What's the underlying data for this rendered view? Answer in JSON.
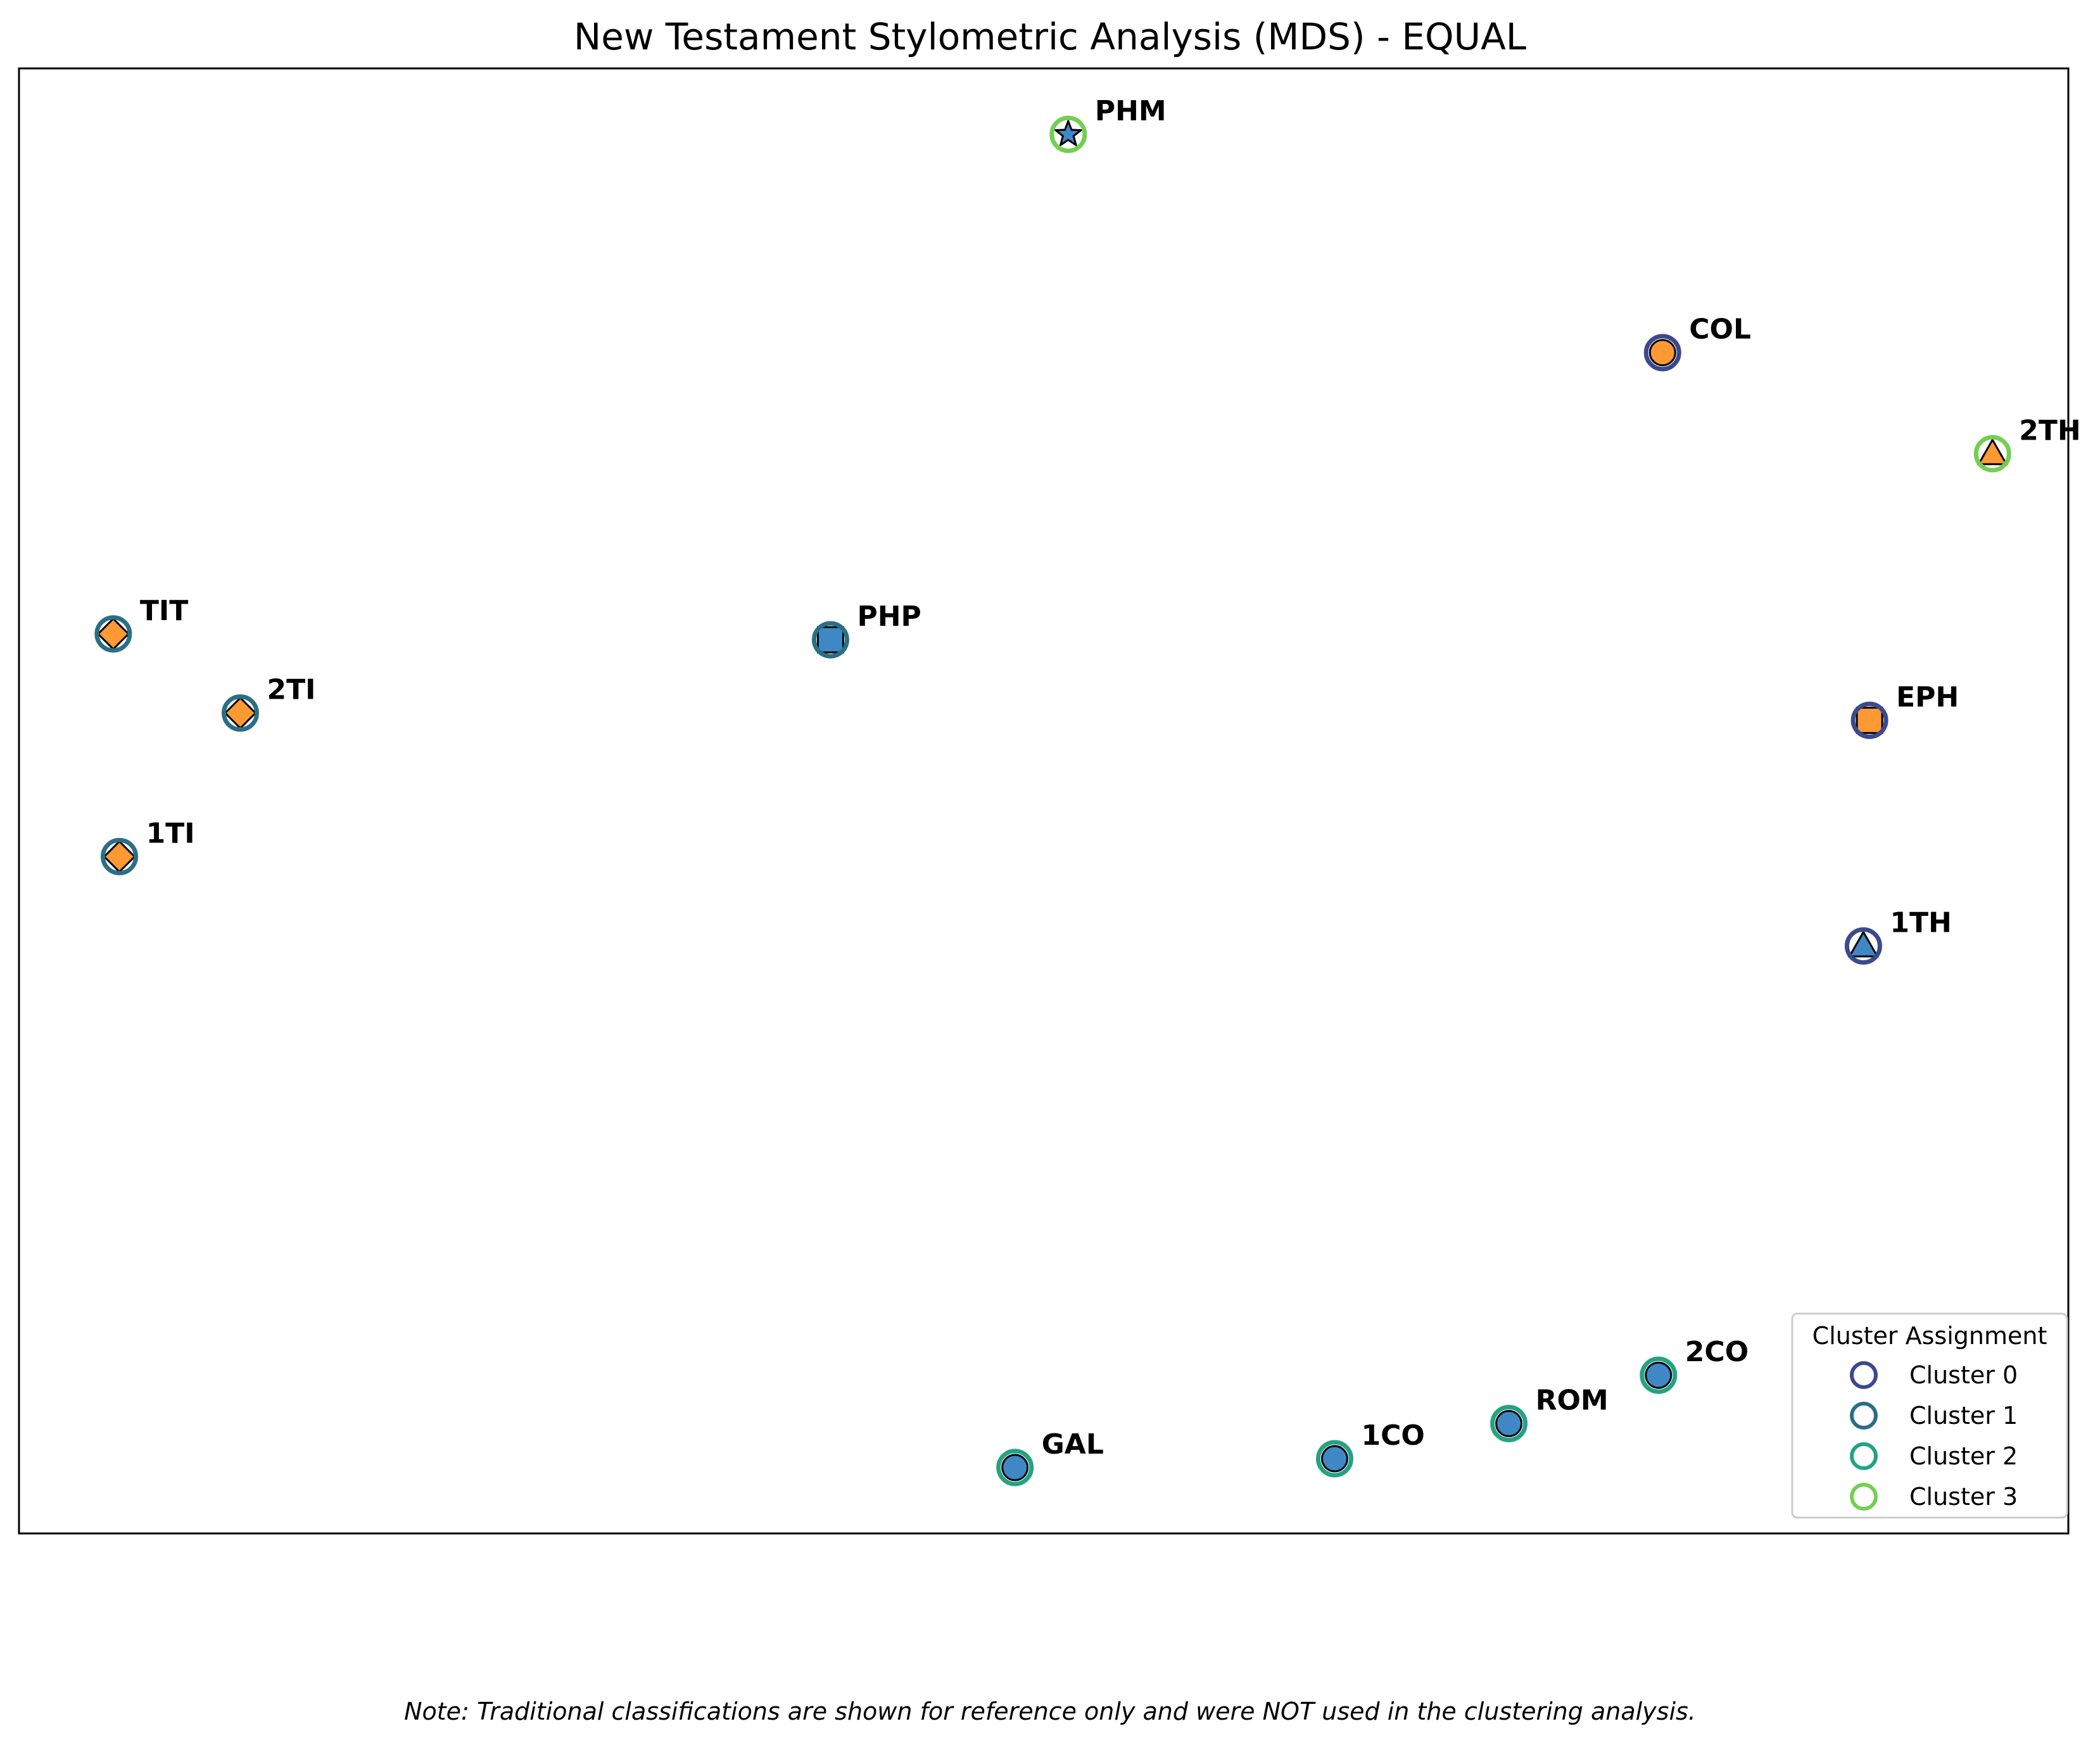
{
  "chart_data": {
    "type": "scatter",
    "title": "New Testament Stylometric Analysis (MDS) - EQUAL",
    "xlabel": "",
    "ylabel": "",
    "xlim": [
      0,
      100
    ],
    "ylim": [
      0,
      100
    ],
    "grid": false,
    "axis_ticks": false,
    "legend": {
      "title": "Cluster Assignment",
      "placement": "lower-right",
      "entries": [
        "Cluster 0",
        "Cluster 1",
        "Cluster 2",
        "Cluster 3"
      ]
    },
    "cluster_colors": [
      "#3b4a8c",
      "#2a6f86",
      "#23a384",
      "#74cf50"
    ],
    "fill_colors": {
      "orange": "#ff9933",
      "blue": "#3f88c5"
    },
    "points": [
      {
        "label": "PHM",
        "x": 51.2,
        "y": 95.5,
        "cluster": 3,
        "marker": "star",
        "fill": "blue"
      },
      {
        "label": "COL",
        "x": 80.2,
        "y": 80.6,
        "cluster": 0,
        "marker": "circle",
        "fill": "orange"
      },
      {
        "label": "2TH",
        "x": 96.3,
        "y": 73.7,
        "cluster": 3,
        "marker": "triangle",
        "fill": "orange"
      },
      {
        "label": "TIT",
        "x": 4.6,
        "y": 61.4,
        "cluster": 1,
        "marker": "diamond",
        "fill": "orange"
      },
      {
        "label": "PHP",
        "x": 39.6,
        "y": 61.0,
        "cluster": 1,
        "marker": "square",
        "fill": "blue"
      },
      {
        "label": "2TI",
        "x": 10.8,
        "y": 56.0,
        "cluster": 1,
        "marker": "diamond",
        "fill": "orange"
      },
      {
        "label": "EPH",
        "x": 90.3,
        "y": 55.5,
        "cluster": 0,
        "marker": "square",
        "fill": "orange"
      },
      {
        "label": "1TI",
        "x": 4.9,
        "y": 46.2,
        "cluster": 1,
        "marker": "diamond",
        "fill": "orange"
      },
      {
        "label": "1TH",
        "x": 90.0,
        "y": 40.1,
        "cluster": 0,
        "marker": "triangle",
        "fill": "blue"
      },
      {
        "label": "2CO",
        "x": 80.0,
        "y": 10.8,
        "cluster": 2,
        "marker": "circle",
        "fill": "blue"
      },
      {
        "label": "ROM",
        "x": 72.7,
        "y": 7.5,
        "cluster": 2,
        "marker": "circle",
        "fill": "blue"
      },
      {
        "label": "1CO",
        "x": 64.2,
        "y": 5.1,
        "cluster": 2,
        "marker": "circle",
        "fill": "blue"
      },
      {
        "label": "GAL",
        "x": 48.6,
        "y": 4.5,
        "cluster": 2,
        "marker": "circle",
        "fill": "blue"
      }
    ]
  },
  "note": "Note: Traditional classifications are shown for reference only and were NOT used in the clustering analysis."
}
